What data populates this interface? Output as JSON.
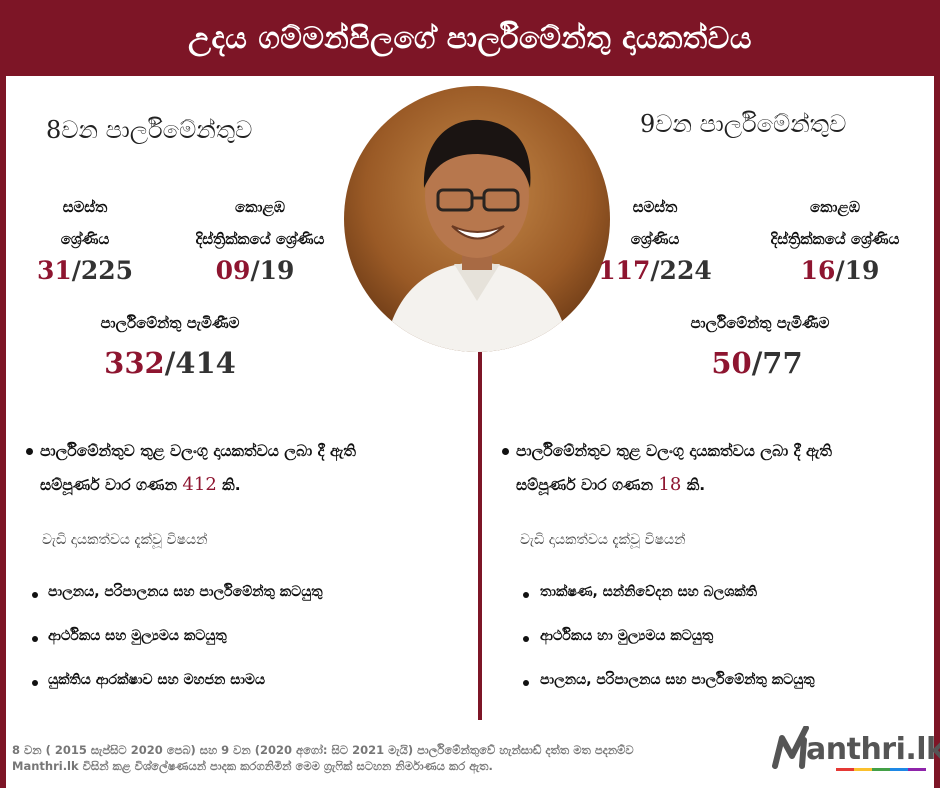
{
  "header": {
    "title": "උදය ගම්මන්පිලගේ පාර්ලිමේන්තු දායකත්වය"
  },
  "left": {
    "title": "8වන පාර්ලිමේන්තුව",
    "overall_label_1": "සමස්ත",
    "overall_label_2": "ශ්‍රේණිය",
    "overall_rank": "31",
    "overall_total": "/225",
    "district_label_1": "කොළඹ",
    "district_label_2": "දිස්ත්‍රික්කයේ ශ්‍රේණිය",
    "district_rank": "09",
    "district_total": "/19",
    "attendance_label": "පාර්ලිමේන්තු පැමිණීම",
    "attendance_value": "332",
    "attendance_total": "/414",
    "summary_pre": "පාර්ලිමේන්තුව තුළ වලංගු දායකත්වය ලබා දී ඇති",
    "summary_mid": "සම්පූර්ණ වාර ගණන ",
    "summary_count": "412",
    "summary_post": " කි.",
    "topics_heading": "වැඩි දායකත්වය දැක්වූ විෂයන්",
    "topics": [
      "පාලනය, පරිපාලනය සහ පාර්ලිමේන්තු කටයුතු",
      "ආර්ථිකය සහ මුල්‍යමය කටයුතු",
      "යුක්තිය ආරක්ෂාව සහ මහජන සාමය"
    ]
  },
  "right": {
    "title": "9වන පාර්ලිමේන්තුව",
    "overall_label_1": "සමස්ත",
    "overall_label_2": "ශ්‍රේණිය",
    "overall_rank": "117",
    "overall_total": "/224",
    "district_label_1": "කොළඹ",
    "district_label_2": "දිස්ත්‍රික්කයේ ශ්‍රේණිය",
    "district_rank": "16",
    "district_total": "/19",
    "attendance_label": "පාර්ලිමේන්තු පැමිණීම",
    "attendance_value": "50",
    "attendance_total": "/77",
    "summary_pre": "පාර්ලිමේන්තුව තුළ වලංගු දායකත්වය ලබා දී ඇති",
    "summary_mid": "සම්පූර්ණ වාර ගණන ",
    "summary_count": "18",
    "summary_post": " කි.",
    "topics_heading": "වැඩි දායකත්වය දැක්වූ විෂයන්",
    "topics": [
      "තාක්ෂණ, සන්නිවේදන සහ බලශක්ති",
      "ආර්ථිකය හා මුල්‍යමය කටයුතු",
      "පාලනය, පරිපාලනය සහ පාර්ලිමේන්තු කටයුතු"
    ]
  },
  "footer": {
    "line1": "8 වන ( 2015 සැප්සිට 2020 පෙබ) සහ 9 වන (2020 අගෝ: සිට 2021 මැයි) පාර්ලිමේන්තුවේ හැන්සාඩ් දත්ත මත පදනම්ව",
    "line2": "Manthri.lk විසින් කළ විශ්ලේෂණයන් පාදක කරගනිමින් මෙම ග්‍රැෆික් සටහන නිර්මාණය කර ඇත."
  },
  "logo": {
    "text": "anthri.lk",
    "icon": "manthri-m-logo-icon"
  },
  "colors": {
    "brand": "#7d1526",
    "accent": "#8e1530"
  }
}
